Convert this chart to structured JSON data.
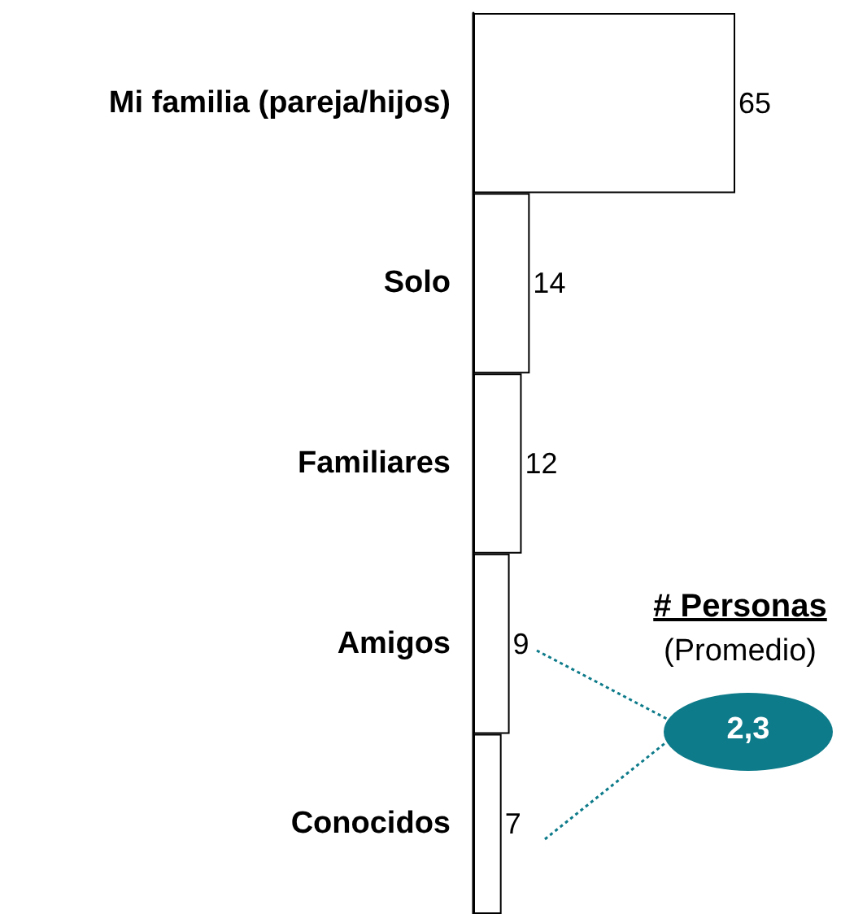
{
  "chart_data": {
    "type": "bar",
    "orientation": "horizontal",
    "categories": [
      "Mi familia (pareja/hijos)",
      "Solo",
      "Familiares",
      "Amigos",
      "Conocidos"
    ],
    "values": [
      65,
      14,
      12,
      9,
      7
    ],
    "color": "#ffffff",
    "data_labels": true,
    "tick_labels": "y",
    "annotations": [
      "# Personas",
      "(Promedio)",
      "2,3"
    ]
  }
}
